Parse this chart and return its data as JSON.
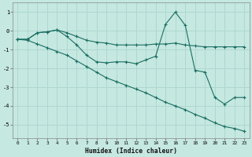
{
  "bg_color": "#c5e8e0",
  "grid_color": "#aed8d0",
  "line_color": "#1a6e62",
  "xlabel": "Humidex (Indice chaleur)",
  "xlim": [
    -0.5,
    23.5
  ],
  "ylim": [
    -5.7,
    1.5
  ],
  "xticks": [
    0,
    1,
    2,
    3,
    4,
    5,
    6,
    7,
    8,
    9,
    10,
    11,
    12,
    13,
    14,
    15,
    16,
    17,
    18,
    19,
    20,
    21,
    22,
    23
  ],
  "yticks": [
    -5,
    -4,
    -3,
    -2,
    -1,
    0,
    1
  ],
  "line1_x": [
    0,
    1,
    2,
    3,
    4,
    5,
    6,
    7,
    8,
    9,
    10,
    11,
    12,
    13,
    14,
    15,
    16,
    17,
    18,
    19,
    20,
    21,
    22,
    23
  ],
  "line1_y": [
    -0.45,
    -0.45,
    -0.1,
    -0.05,
    0.05,
    -0.1,
    -0.3,
    -0.5,
    -0.6,
    -0.65,
    -0.75,
    -0.75,
    -0.75,
    -0.75,
    -0.7,
    -0.7,
    -0.65,
    -0.75,
    -0.8,
    -0.85,
    -0.85,
    -0.85,
    -0.85,
    -0.85
  ],
  "line2_x": [
    0,
    1,
    2,
    3,
    4,
    5,
    6,
    7,
    8,
    9,
    10,
    11,
    12,
    13,
    14,
    15,
    16,
    17,
    18,
    19,
    20,
    21,
    22,
    23
  ],
  "line2_y": [
    -0.45,
    -0.45,
    -0.1,
    -0.05,
    0.05,
    -0.3,
    -0.75,
    -1.3,
    -1.65,
    -1.7,
    -1.65,
    -1.65,
    -1.75,
    -1.55,
    -1.35,
    0.35,
    1.0,
    0.3,
    -2.1,
    -2.2,
    -3.55,
    -3.9,
    -3.55,
    -3.55
  ],
  "line3_x": [
    0,
    1,
    2,
    3,
    4,
    5,
    6,
    7,
    8,
    9,
    10,
    11,
    12,
    13,
    14,
    15,
    16,
    17,
    18,
    19,
    20,
    21,
    22,
    23
  ],
  "line3_y": [
    -0.45,
    -0.5,
    -0.7,
    -0.9,
    -1.1,
    -1.3,
    -1.6,
    -1.9,
    -2.2,
    -2.5,
    -2.7,
    -2.9,
    -3.1,
    -3.3,
    -3.55,
    -3.8,
    -4.0,
    -4.2,
    -4.45,
    -4.65,
    -4.9,
    -5.1,
    -5.2,
    -5.35
  ]
}
